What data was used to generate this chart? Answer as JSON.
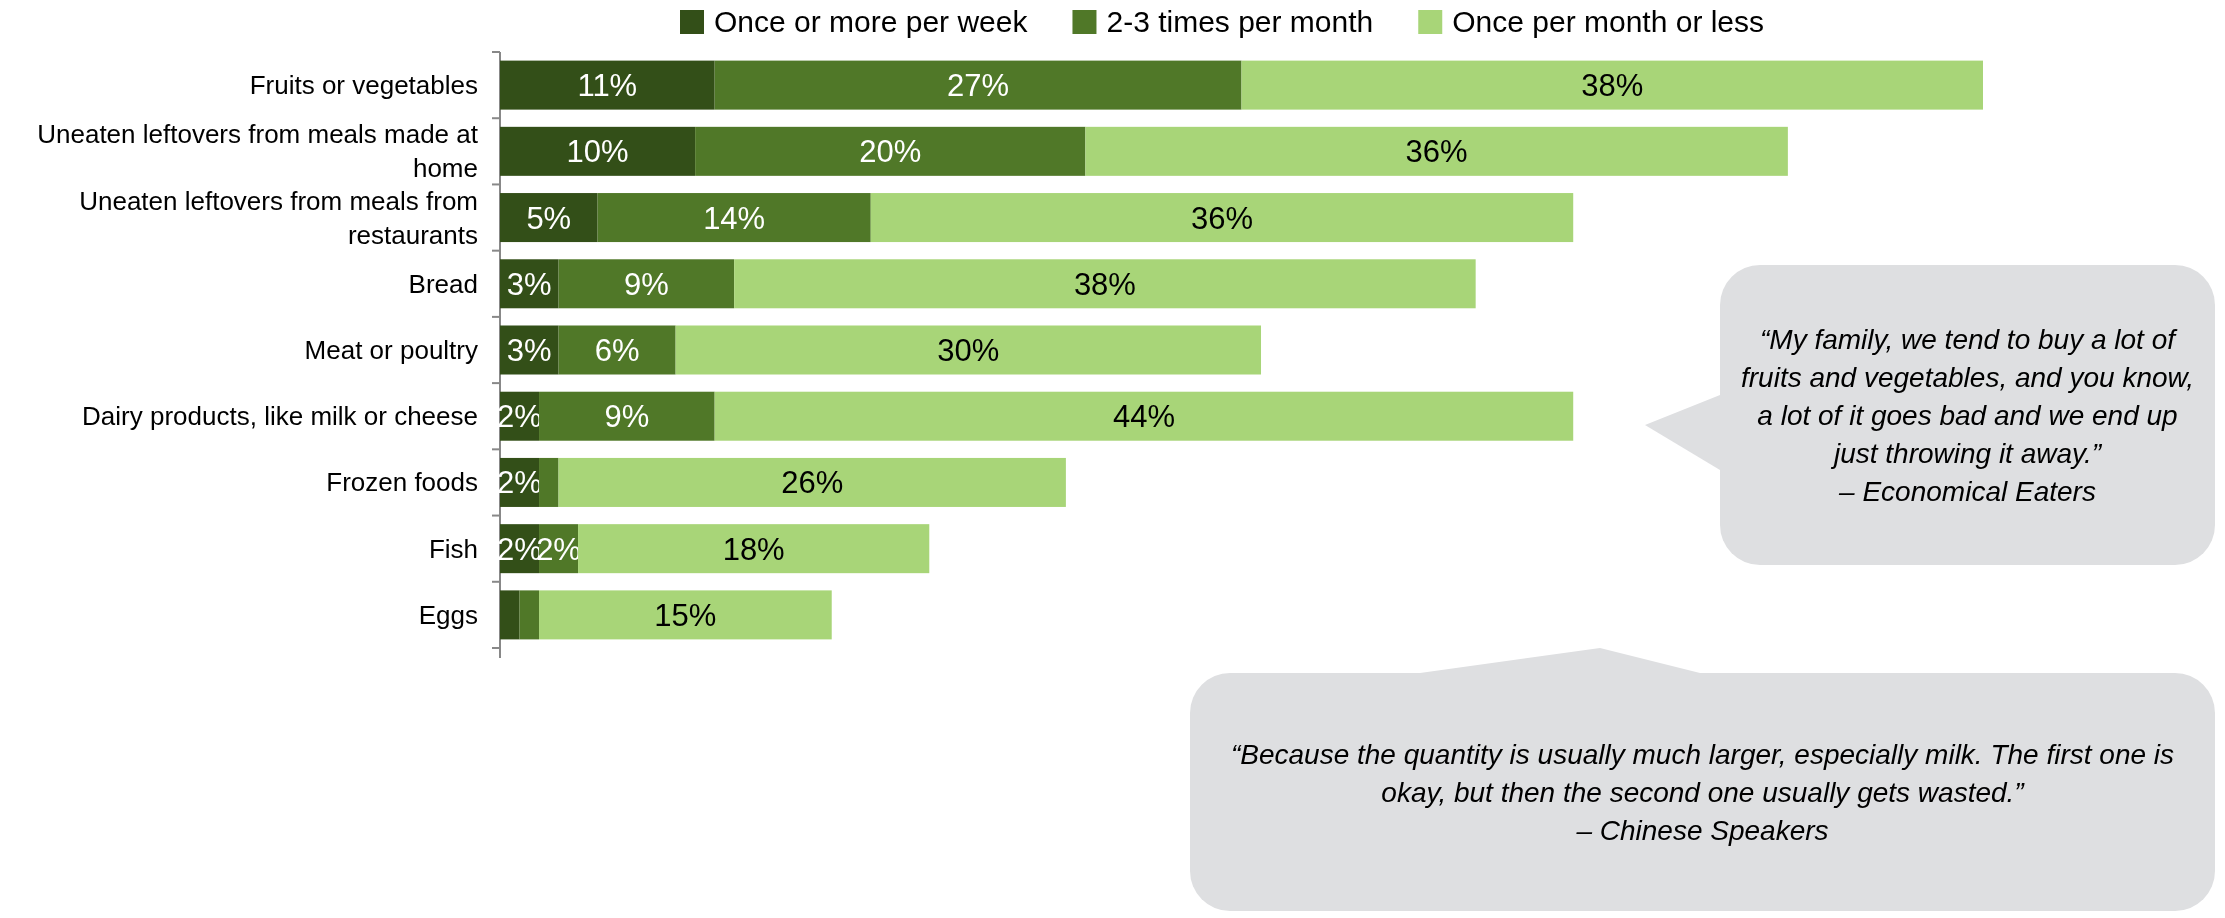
{
  "chart_data": {
    "type": "bar",
    "orientation": "horizontal",
    "stacked": true,
    "legend": "top",
    "categories": [
      "Fruits or vegetables",
      "Uneaten leftovers from meals made at home",
      "Uneaten leftovers from meals from restaurants",
      "Bread",
      "Meat or poultry",
      "Dairy products, like milk or cheese",
      "Frozen foods",
      "Fish",
      "Eggs"
    ],
    "series": [
      {
        "name": "Once or more per week",
        "color": "#334f18",
        "values": [
          11,
          10,
          5,
          3,
          3,
          2,
          2,
          2,
          1
        ],
        "value_labels": [
          "11%",
          "10%",
          "5%",
          "3%",
          "3%",
          "2%",
          "2%",
          "2%",
          null
        ]
      },
      {
        "name": "2-3 times per month",
        "color": "#507828",
        "values": [
          27,
          20,
          14,
          9,
          6,
          9,
          1,
          2,
          1
        ],
        "value_labels": [
          "27%",
          "20%",
          "14%",
          "9%",
          "6%",
          "9%",
          null,
          "2%",
          null
        ]
      },
      {
        "name": "Once per month or less",
        "color": "#a8d578",
        "values": [
          38,
          36,
          36,
          38,
          30,
          44,
          26,
          18,
          15
        ],
        "value_labels": [
          "38%",
          "36%",
          "36%",
          "38%",
          "30%",
          "44%",
          "26%",
          "18%",
          "15%"
        ]
      }
    ],
    "annotations": [
      "“My family, we tend to buy a lot of fruits and vegetables, and you know, a lot of it goes bad and we end up just throwing it away.”\n– Economical Eaters",
      "“Because the quantity is usually much larger, especially milk. The first one is okay, but then the second one usually gets wasted.”\n– Chinese Speakers"
    ]
  }
}
